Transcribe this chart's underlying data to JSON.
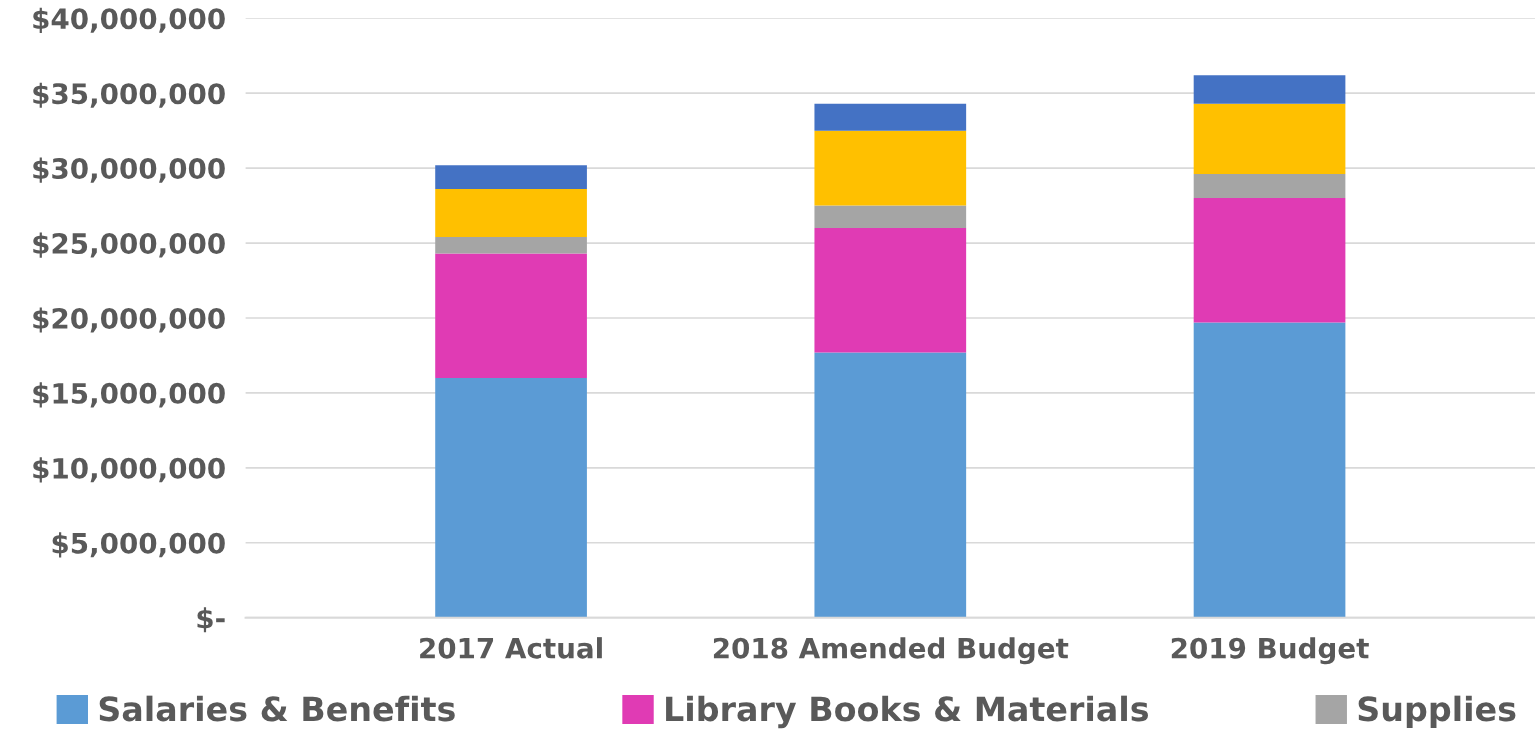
{
  "chart_data": {
    "type": "bar",
    "stacked": true,
    "categories": [
      "2017 Actual",
      "2018 Amended Budget",
      "2019 Budget"
    ],
    "series": [
      {
        "name": "Salaries & Benefits",
        "color": "#5b9bd5",
        "values": [
          16000000,
          17700000,
          19700000
        ]
      },
      {
        "name": "Library Books & Materials",
        "color": "#e03bb4",
        "values": [
          8300000,
          8300000,
          8300000
        ]
      },
      {
        "name": "Supplies",
        "color": "#a5a5a5",
        "values": [
          1100000,
          1500000,
          1600000
        ]
      },
      {
        "color": "#ffc000",
        "values": [
          3200000,
          5000000,
          4700000
        ]
      },
      {
        "color": "#4472c4",
        "values": [
          1600000,
          1800000,
          1900000
        ]
      }
    ],
    "ylim": [
      0,
      40000000
    ],
    "yticks": [
      {
        "value": 0,
        "label": "$-"
      },
      {
        "value": 5000000,
        "label": "$5,000,000"
      },
      {
        "value": 10000000,
        "label": "$10,000,000"
      },
      {
        "value": 15000000,
        "label": "$15,000,000"
      },
      {
        "value": 20000000,
        "label": "$20,000,000"
      },
      {
        "value": 25000000,
        "label": "$25,000,000"
      },
      {
        "value": 30000000,
        "label": "$30,000,000"
      },
      {
        "value": 35000000,
        "label": "$35,000,000"
      },
      {
        "value": 40000000,
        "label": "$40,000,000"
      }
    ],
    "grid": "y",
    "legend": "bottom"
  }
}
